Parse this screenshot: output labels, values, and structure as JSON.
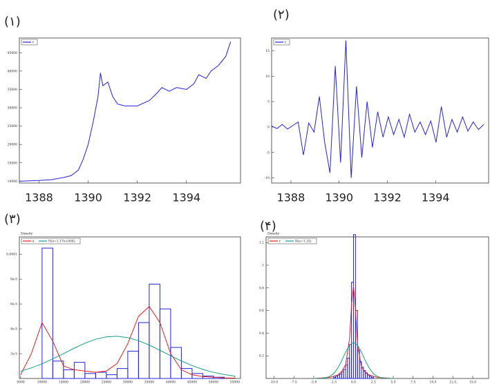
{
  "chart_data": [
    {
      "type": "line",
      "label": "(۱)",
      "x": [
        1387.2,
        1388,
        1388.5,
        1389,
        1389.3,
        1389.6,
        1389.8,
        1390,
        1390.2,
        1390.4,
        1390.5,
        1390.6,
        1390.8,
        1391,
        1391.2,
        1391.5,
        1392,
        1392.5,
        1392.8,
        1393,
        1393.3,
        1393.6,
        1394,
        1394.3,
        1394.5,
        1394.8,
        1395,
        1395.3,
        1395.6,
        1395.8
      ],
      "series": [
        {
          "name": "r",
          "color": "#2222dd",
          "values": [
            10000,
            10200,
            10400,
            11000,
            11500,
            13000,
            16000,
            20000,
            26000,
            33000,
            39500,
            36000,
            37000,
            33000,
            31000,
            30500,
            30500,
            32000,
            34000,
            35500,
            34500,
            35500,
            35000,
            36500,
            39000,
            38000,
            40000,
            41500,
            44000,
            48000
          ]
        }
      ],
      "xlim": [
        1387.2,
        1396.2
      ],
      "xticks": [
        1388,
        1390,
        1392,
        1394
      ],
      "ylim": [
        9500,
        49000
      ],
      "yticks": [
        10000,
        15000,
        20000,
        25000,
        30000,
        35000,
        40000,
        45000
      ]
    },
    {
      "type": "line",
      "label": "(۲)",
      "x": [
        1387.2,
        1387.42,
        1387.64,
        1387.86,
        1388.08,
        1388.3,
        1388.52,
        1388.74,
        1388.96,
        1389.18,
        1389.4,
        1389.62,
        1389.84,
        1390.06,
        1390.28,
        1390.5,
        1390.72,
        1390.94,
        1391.16,
        1391.38,
        1391.6,
        1391.82,
        1392.04,
        1392.26,
        1392.48,
        1392.7,
        1392.92,
        1393.14,
        1393.36,
        1393.58,
        1393.8,
        1394.02,
        1394.24,
        1394.46,
        1394.68,
        1394.9,
        1395.12,
        1395.34,
        1395.56,
        1395.78,
        1396.0
      ],
      "series": [
        {
          "name": "r",
          "color": "#2222dd",
          "values": [
            0.2,
            -0.3,
            0.5,
            -0.4,
            0.3,
            1,
            -5.5,
            0.8,
            -1,
            6,
            -3,
            -9,
            12,
            -7,
            17,
            -10,
            8,
            -6,
            5,
            -4,
            3,
            -2,
            2,
            -1.5,
            1.5,
            -2,
            2.5,
            -1,
            1,
            -1.5,
            1.2,
            -3,
            4,
            -2,
            1.5,
            -1,
            2,
            -0.8,
            1,
            -0.5,
            0.5
          ]
        }
      ],
      "xlim": [
        1387.2,
        1396.2
      ],
      "xticks": [
        1388,
        1390,
        1392,
        1394
      ],
      "ylim": [
        -11,
        17.5
      ],
      "yticks": [
        -10,
        -5,
        0,
        5,
        10,
        15
      ]
    },
    {
      "type": "histogram",
      "label": "(۳)",
      "ylabel": "Density",
      "color": "#2222dd",
      "bins": [
        5000,
        7500,
        10000,
        12500,
        15000,
        17500,
        20000,
        22500,
        25000,
        27500,
        30000,
        32500,
        35000,
        37500,
        40000,
        42500,
        45000,
        47500,
        50000,
        52500,
        55000
      ],
      "values": [
        0,
        0,
        0.000105,
        1.4e-05,
        7e-06,
        1.3e-05,
        4e-06,
        5e-06,
        3e-06,
        8e-06,
        2.2e-05,
        4.5e-05,
        7.6e-05,
        5.6e-05,
        2.5e-05,
        8e-06,
        4e-06,
        2e-06,
        1e-06,
        0
      ],
      "series": [
        {
          "name": "x",
          "color": "#e02020",
          "x": [
            5000,
            7500,
            10000,
            12500,
            15000,
            17500,
            20000,
            22500,
            25000,
            27500,
            30000,
            32500,
            35000,
            37500,
            40000,
            42500,
            45000,
            47500,
            50000,
            52500,
            55000
          ],
          "values": [
            3e-06,
            2e-05,
            4.5e-05,
            3e-05,
            1e-05,
            7e-06,
            6e-06,
            5e-06,
            6e-06,
            1.2e-05,
            2.8e-05,
            5e-05,
            5.8e-05,
            4.5e-05,
            2e-05,
            7e-06,
            3e-06,
            1.5e-06,
            1e-06,
            5e-07,
            3e-07
          ]
        },
        {
          "name": "N(s=1.17e+004)",
          "color": "#1a9a8a",
          "x": [
            5000,
            7500,
            10000,
            12500,
            15000,
            17500,
            20000,
            22500,
            25000,
            27500,
            30000,
            32500,
            35000,
            37500,
            40000,
            42500,
            45000,
            47500,
            50000,
            52500,
            55000
          ],
          "values": [
            5.8e-06,
            8.5e-06,
            1.18e-05,
            1.58e-05,
            2e-05,
            2.44e-05,
            2.84e-05,
            3.16e-05,
            3.35e-05,
            3.4e-05,
            3.29e-05,
            3.04e-05,
            2.69e-05,
            2.27e-05,
            1.83e-05,
            1.41e-05,
            1.04e-05,
            7.3e-06,
            4.9e-06,
            3.2e-06,
            1.9e-06
          ]
        }
      ],
      "xlim": [
        4700,
        56300
      ],
      "xticks": [
        5000,
        10000,
        15000,
        20000,
        25000,
        30000,
        35000,
        40000,
        45000,
        50000,
        55000
      ],
      "ylim": [
        0,
        0.000114
      ],
      "yticks": [
        {
          "value": 2e-05,
          "label": "2e-5"
        },
        {
          "value": 4e-05,
          "label": "4e-5"
        },
        {
          "value": 6e-05,
          "label": "6e-5"
        },
        {
          "value": 8e-05,
          "label": "8e-5"
        },
        0.0001
      ]
    },
    {
      "type": "histogram",
      "label": "(۴)",
      "ylabel": "Density",
      "color": "#2222dd",
      "bins": [
        -2.5,
        -2.25,
        -2,
        -1.75,
        -1.5,
        -1.25,
        -1,
        -0.75,
        -0.5,
        -0.25,
        0,
        0.25,
        0.5,
        0.75,
        1,
        1.25,
        1.5,
        1.75,
        2,
        2.25,
        2.5
      ],
      "values": [
        0.01,
        0.02,
        0.03,
        0.04,
        0.06,
        0.08,
        0.12,
        0.18,
        0.3,
        0.85,
        1.27,
        0.6,
        0.25,
        0.15,
        0.1,
        0.07,
        0.05,
        0.03,
        0.02,
        0.01
      ],
      "series": [
        {
          "name": "r",
          "color": "#e02020",
          "x": [
            -5,
            -3,
            -2,
            -1.5,
            -1,
            -0.5,
            -0.25,
            0,
            0.25,
            0.5,
            1,
            1.5,
            2,
            3,
            5
          ],
          "values": [
            0,
            0.01,
            0.03,
            0.06,
            0.12,
            0.35,
            0.65,
            0.82,
            0.6,
            0.3,
            0.1,
            0.05,
            0.03,
            0.01,
            0
          ]
        },
        {
          "name": "N(s=1.25)",
          "color": "#1a9a8a",
          "x": [
            -5,
            -4.5,
            -4,
            -3.5,
            -3,
            -2.5,
            -2,
            -1.5,
            -1,
            -0.5,
            0,
            0.5,
            1,
            1.5,
            2,
            2.5,
            3,
            3.5,
            4,
            4.5,
            5
          ],
          "values": [
            0.0001,
            0.0005,
            0.0019,
            0.0063,
            0.018,
            0.043,
            0.089,
            0.155,
            0.232,
            0.294,
            0.319,
            0.294,
            0.232,
            0.155,
            0.089,
            0.043,
            0.018,
            0.0063,
            0.0019,
            0.0005,
            0.0001
          ]
        }
      ],
      "xlim": [
        -11,
        17
      ],
      "xticks": [
        {
          "value": -10,
          "label": "-10.0"
        },
        {
          "value": -7.5,
          "label": "-7.5"
        },
        {
          "value": -5,
          "label": "-5.0"
        },
        {
          "value": -2.5,
          "label": "-2.5"
        },
        {
          "value": 0,
          "label": "0.0"
        },
        {
          "value": 2.5,
          "label": "2.5"
        },
        {
          "value": 5,
          "label": "5.0"
        },
        {
          "value": 7.5,
          "label": "7.5"
        },
        {
          "value": 10,
          "label": "10.0"
        },
        {
          "value": 12.5,
          "label": "12.5"
        },
        {
          "value": 15,
          "label": "15.0"
        }
      ],
      "ylim": [
        0,
        1.25
      ],
      "yticks": [
        0.2,
        0.4,
        0.6,
        0.8,
        1,
        1.2
      ]
    }
  ]
}
